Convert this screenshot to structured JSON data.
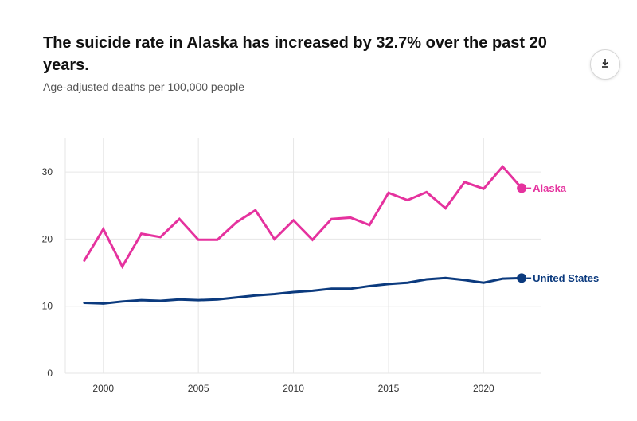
{
  "header": {
    "title": "The suicide rate in Alaska has increased by 32.7% over the past 20 years.",
    "subtitle": "Age-adjusted deaths per 100,000 people"
  },
  "toolbar": {
    "download_icon": "download-icon"
  },
  "colors": {
    "alaska": "#e5329e",
    "us": "#0b3a7e",
    "grid": "#e6e6e6",
    "axis_text": "#333333"
  },
  "chart_data": {
    "type": "line",
    "title": "The suicide rate in Alaska has increased by 32.7% over the past 20 years.",
    "subtitle": "Age-adjusted deaths per 100,000 people",
    "xlabel": "",
    "ylabel": "",
    "x": [
      1999,
      2000,
      2001,
      2002,
      2003,
      2004,
      2005,
      2006,
      2007,
      2008,
      2009,
      2010,
      2011,
      2012,
      2013,
      2014,
      2015,
      2016,
      2017,
      2018,
      2019,
      2020,
      2021,
      2022
    ],
    "x_ticks": [
      2000,
      2005,
      2010,
      2015,
      2020
    ],
    "y_ticks": [
      0,
      10,
      20,
      30
    ],
    "xlim": [
      1998,
      2023
    ],
    "ylim": [
      0,
      35
    ],
    "grid": true,
    "legend": "end-of-line labels",
    "series": [
      {
        "name": "Alaska",
        "color": "#e5329e",
        "values": [
          16.8,
          21.5,
          15.9,
          20.8,
          20.3,
          23.0,
          19.9,
          19.9,
          22.5,
          24.3,
          20.0,
          22.8,
          19.9,
          23.0,
          23.2,
          22.1,
          26.9,
          25.8,
          27.0,
          24.6,
          28.5,
          27.5,
          30.8,
          27.6
        ]
      },
      {
        "name": "United States",
        "color": "#0b3a7e",
        "values": [
          10.5,
          10.4,
          10.7,
          10.9,
          10.8,
          11.0,
          10.9,
          11.0,
          11.3,
          11.6,
          11.8,
          12.1,
          12.3,
          12.6,
          12.6,
          13.0,
          13.3,
          13.5,
          14.0,
          14.2,
          13.9,
          13.5,
          14.1,
          14.2
        ]
      }
    ]
  }
}
